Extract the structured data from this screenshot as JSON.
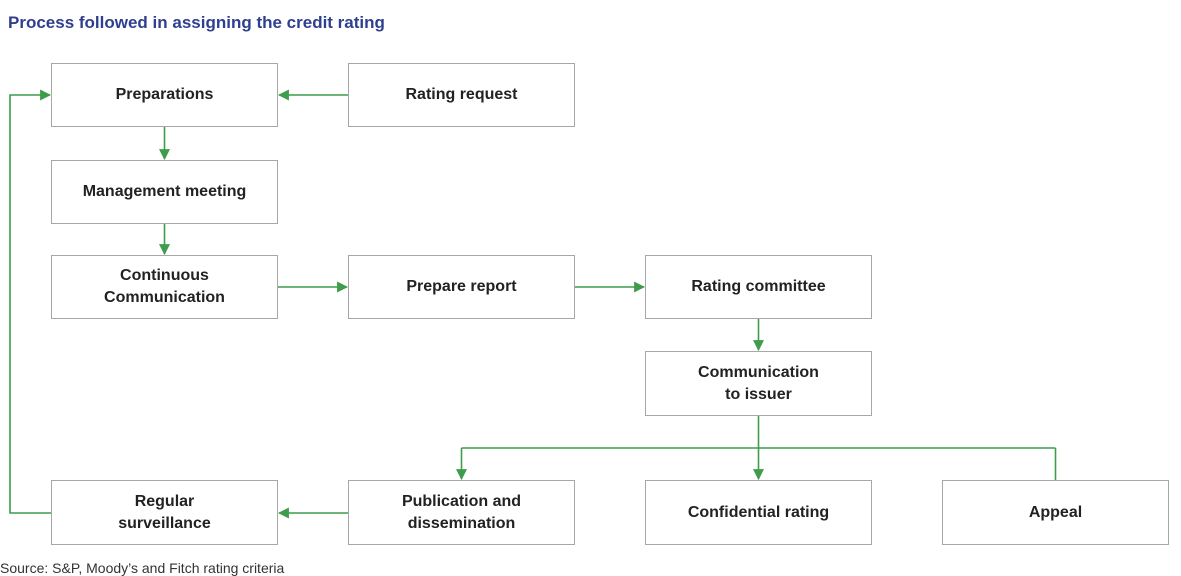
{
  "title": "Process followed in assigning the credit rating",
  "source": "Source: S&P, Moody’s and Fitch rating criteria",
  "colors": {
    "title": "#2e3f8f",
    "arrow": "#3e9c4b",
    "box_border": "#a7a7a7",
    "box_text": "#222222"
  },
  "nodes": {
    "preparations": "Preparations",
    "rating_request": "Rating request",
    "management_meeting": "Management meeting",
    "continuous_communication": "Continuous\nCommunication",
    "prepare_report": "Prepare report",
    "rating_committee": "Rating committee",
    "communication_to_issuer": "Communication\nto issuer",
    "regular_surveillance": "Regular\nsurveillance",
    "publication_and_dissemination": "Publication and\ndissemination",
    "confidential_rating": "Confidential rating",
    "appeal": "Appeal"
  },
  "edges": [
    {
      "from": "rating_request",
      "to": "preparations"
    },
    {
      "from": "preparations",
      "to": "management_meeting"
    },
    {
      "from": "management_meeting",
      "to": "continuous_communication"
    },
    {
      "from": "continuous_communication",
      "to": "prepare_report"
    },
    {
      "from": "prepare_report",
      "to": "rating_committee"
    },
    {
      "from": "rating_committee",
      "to": "communication_to_issuer"
    },
    {
      "from": "communication_to_issuer",
      "to": "publication_and_dissemination"
    },
    {
      "from": "communication_to_issuer",
      "to": "confidential_rating"
    },
    {
      "from": "communication_to_issuer",
      "to": "appeal"
    },
    {
      "from": "publication_and_dissemination",
      "to": "regular_surveillance"
    },
    {
      "from": "regular_surveillance",
      "to": "preparations"
    }
  ]
}
